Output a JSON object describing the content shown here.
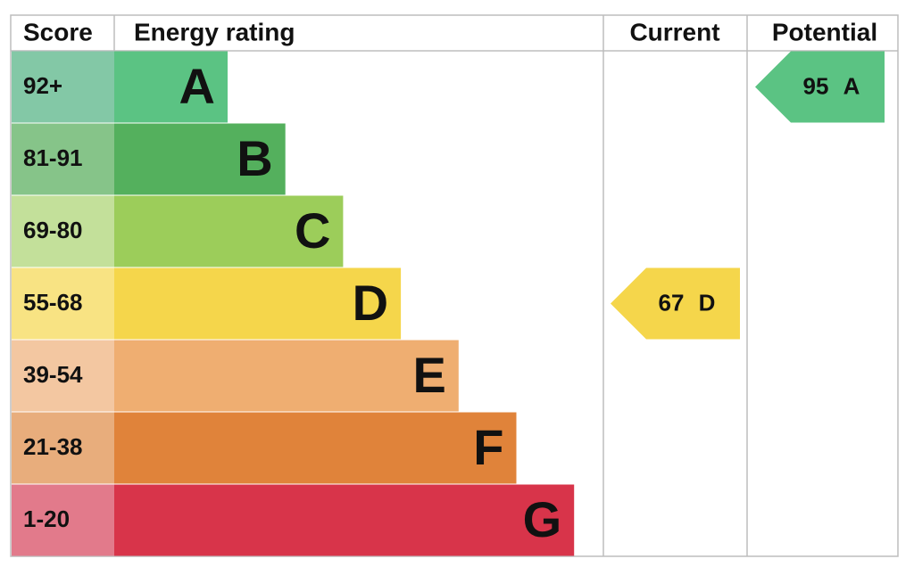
{
  "header": {
    "score": "Score",
    "rating": "Energy rating",
    "current": "Current",
    "potential": "Potential"
  },
  "bands": [
    {
      "score": "92+",
      "letter": "A",
      "color": "#5bc383",
      "score_color": "#83c8a6"
    },
    {
      "score": "81-91",
      "letter": "B",
      "color": "#54b05d",
      "score_color": "#86c489"
    },
    {
      "score": "69-80",
      "letter": "C",
      "color": "#9ccd5a",
      "score_color": "#c3e09a"
    },
    {
      "score": "55-68",
      "letter": "D",
      "color": "#f5d64b",
      "score_color": "#f8e383"
    },
    {
      "score": "39-54",
      "letter": "E",
      "color": "#efae71",
      "score_color": "#f3c7a1"
    },
    {
      "score": "21-38",
      "letter": "F",
      "color": "#e0833a",
      "score_color": "#e8ad7c"
    },
    {
      "score": "1-20",
      "letter": "G",
      "color": "#d8344a",
      "score_color": "#e27a8b"
    }
  ],
  "current": {
    "value": 67,
    "letter": "D"
  },
  "potential": {
    "value": 95,
    "letter": "A"
  }
}
